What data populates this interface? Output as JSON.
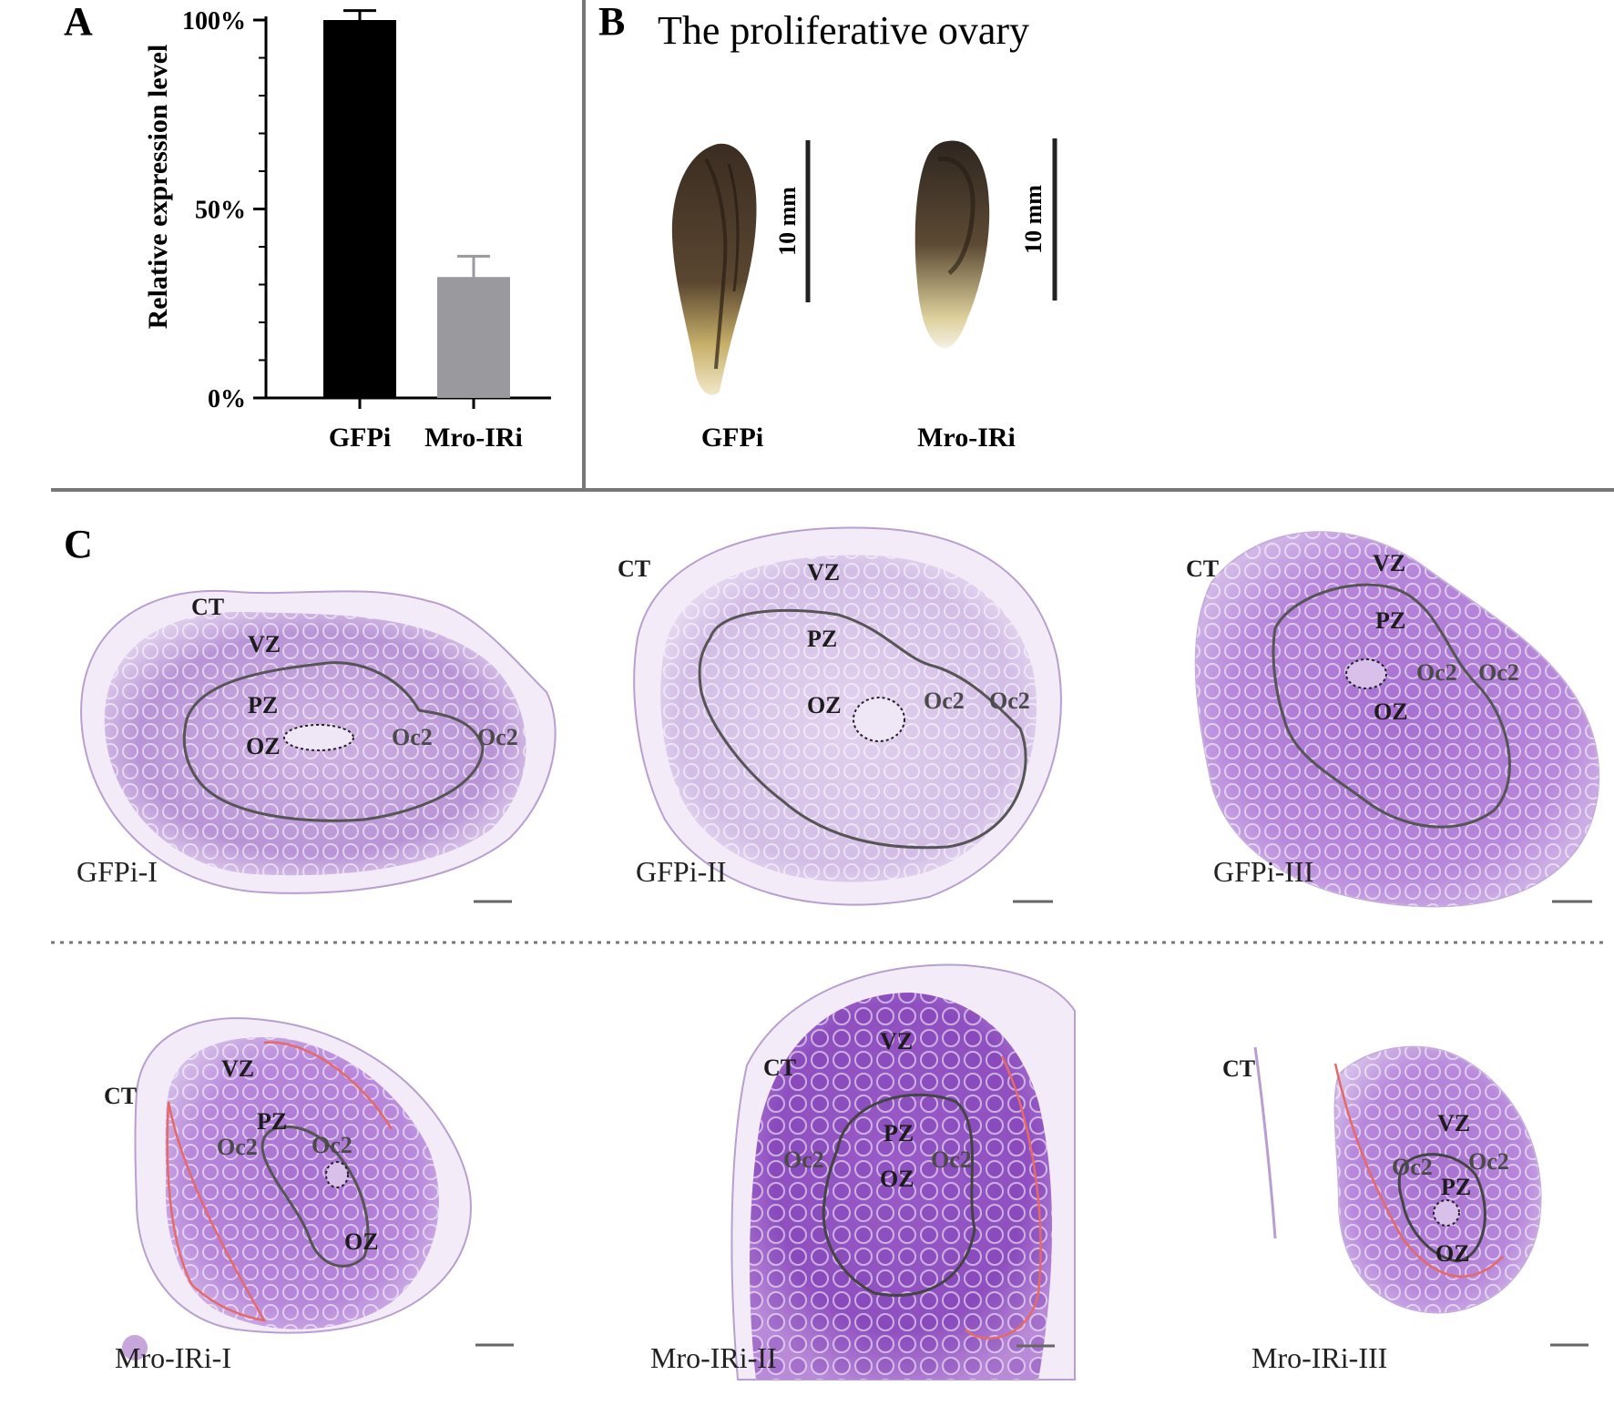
{
  "panels": {
    "a": "A",
    "b": "B",
    "c": "C"
  },
  "chart_data": {
    "type": "bar",
    "categories": [
      "GFPi",
      "Mro-IRi"
    ],
    "values": [
      100,
      32
    ],
    "errors": [
      2.5,
      5.5
    ],
    "ylabel": "Relative expression level",
    "ylim": [
      0,
      100
    ],
    "yticks": [
      "0%",
      "50%",
      "100%"
    ],
    "colors": [
      "#000000",
      "#9a9a9e"
    ]
  },
  "panel_b": {
    "title": "The proliferative ovary",
    "scale_label": "10 mm",
    "labels": [
      "GFPi",
      "Mro-IRi"
    ]
  },
  "panel_c": {
    "zones": {
      "ct": "CT",
      "vz": "VZ",
      "pz": "PZ",
      "oz": "OZ",
      "oc2": "Oc2"
    },
    "samples": [
      "GFPi-I",
      "GFPi-II",
      "GFPi-III",
      "Mro-IRi-I",
      "Mro-IRi-II",
      "Mro-IRi-III"
    ]
  },
  "colors": {
    "tissue": "#c7a6dc",
    "tissue_dark": "#9d6bc4",
    "zone_line": "#555555",
    "red_line": "#e46a6a",
    "divider": "#777777"
  }
}
